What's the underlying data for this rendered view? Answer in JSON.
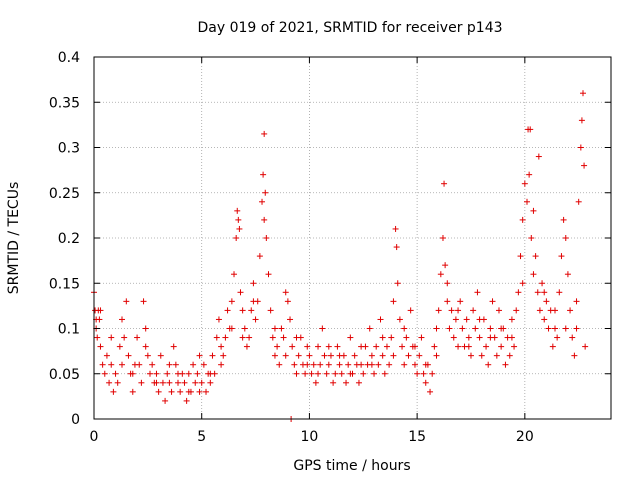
{
  "chart_data": {
    "type": "scatter",
    "title": "Day 019 of 2021, SRMTID for receiver p143",
    "xlabel": "GPS time / hours",
    "ylabel": "SRMTID / TECUs",
    "xlim": [
      0,
      24
    ],
    "ylim": [
      0,
      0.4
    ],
    "grid": true,
    "marker": "+",
    "color": "#e00000",
    "x_ticks": [
      0,
      5,
      10,
      15,
      20
    ],
    "x_tick_labels": [
      "0",
      "5",
      "10",
      "15",
      "20"
    ],
    "y_ticks": [
      0,
      0.05,
      0.1,
      0.15,
      0.2,
      0.25,
      0.3,
      0.35,
      0.4
    ],
    "y_tick_labels": [
      "0",
      "0.05",
      "0.1",
      "0.15",
      "0.2",
      "0.25",
      "0.3",
      "0.35",
      "0.4"
    ],
    "series": [
      {
        "name": "SRMTID",
        "points": [
          [
            0.0,
            0.14
          ],
          [
            0.05,
            0.12
          ],
          [
            0.1,
            0.1
          ],
          [
            0.15,
            0.09
          ],
          [
            0.2,
            0.12
          ],
          [
            0.25,
            0.11
          ],
          [
            0.3,
            0.08
          ],
          [
            0.4,
            0.06
          ],
          [
            0.5,
            0.05
          ],
          [
            0.6,
            0.07
          ],
          [
            0.7,
            0.04
          ],
          [
            0.8,
            0.06
          ],
          [
            0.9,
            0.03
          ],
          [
            1.0,
            0.05
          ],
          [
            1.1,
            0.04
          ],
          [
            1.2,
            0.08
          ],
          [
            1.3,
            0.11
          ],
          [
            1.4,
            0.09
          ],
          [
            1.5,
            0.13
          ],
          [
            1.6,
            0.07
          ],
          [
            1.7,
            0.05
          ],
          [
            1.8,
            0.03
          ],
          [
            1.9,
            0.06
          ],
          [
            2.0,
            0.09
          ],
          [
            2.1,
            0.06
          ],
          [
            2.2,
            0.04
          ],
          [
            2.3,
            0.13
          ],
          [
            2.4,
            0.1
          ],
          [
            2.5,
            0.07
          ],
          [
            2.6,
            0.05
          ],
          [
            2.7,
            0.06
          ],
          [
            2.8,
            0.04
          ],
          [
            2.9,
            0.05
          ],
          [
            3.0,
            0.03
          ],
          [
            3.1,
            0.07
          ],
          [
            3.2,
            0.04
          ],
          [
            3.3,
            0.02
          ],
          [
            3.4,
            0.05
          ],
          [
            3.5,
            0.04
          ],
          [
            3.6,
            0.03
          ],
          [
            3.7,
            0.08
          ],
          [
            3.8,
            0.06
          ],
          [
            3.9,
            0.04
          ],
          [
            4.0,
            0.03
          ],
          [
            4.1,
            0.05
          ],
          [
            4.2,
            0.04
          ],
          [
            4.3,
            0.02
          ],
          [
            4.4,
            0.05
          ],
          [
            4.5,
            0.03
          ],
          [
            4.6,
            0.06
          ],
          [
            4.7,
            0.04
          ],
          [
            4.8,
            0.05
          ],
          [
            4.9,
            0.03
          ],
          [
            5.0,
            0.04
          ],
          [
            5.1,
            0.06
          ],
          [
            5.2,
            0.03
          ],
          [
            5.3,
            0.05
          ],
          [
            5.4,
            0.04
          ],
          [
            5.5,
            0.07
          ],
          [
            5.6,
            0.05
          ],
          [
            5.7,
            0.09
          ],
          [
            5.8,
            0.11
          ],
          [
            5.9,
            0.06
          ],
          [
            6.0,
            0.07
          ],
          [
            6.1,
            0.09
          ],
          [
            6.2,
            0.12
          ],
          [
            6.3,
            0.1
          ],
          [
            6.4,
            0.13
          ],
          [
            6.5,
            0.16
          ],
          [
            6.6,
            0.2
          ],
          [
            6.65,
            0.23
          ],
          [
            6.7,
            0.22
          ],
          [
            6.8,
            0.14
          ],
          [
            6.9,
            0.12
          ],
          [
            7.0,
            0.1
          ],
          [
            7.1,
            0.08
          ],
          [
            7.2,
            0.09
          ],
          [
            7.3,
            0.12
          ],
          [
            7.4,
            0.15
          ],
          [
            7.5,
            0.11
          ],
          [
            7.6,
            0.13
          ],
          [
            7.7,
            0.18
          ],
          [
            7.8,
            0.24
          ],
          [
            7.85,
            0.27
          ],
          [
            7.9,
            0.315
          ],
          [
            7.95,
            0.25
          ],
          [
            8.0,
            0.2
          ],
          [
            8.1,
            0.16
          ],
          [
            8.2,
            0.12
          ],
          [
            8.3,
            0.09
          ],
          [
            8.4,
            0.07
          ],
          [
            8.5,
            0.08
          ],
          [
            8.6,
            0.06
          ],
          [
            8.7,
            0.1
          ],
          [
            8.8,
            0.09
          ],
          [
            8.9,
            0.14
          ],
          [
            9.0,
            0.13
          ],
          [
            9.1,
            0.11
          ],
          [
            9.2,
            0.08
          ],
          [
            9.3,
            0.06
          ],
          [
            9.4,
            0.05
          ],
          [
            9.5,
            0.07
          ],
          [
            9.6,
            0.09
          ],
          [
            9.7,
            0.06
          ],
          [
            9.8,
            0.05
          ],
          [
            9.9,
            0.08
          ],
          [
            10.0,
            0.07
          ],
          [
            10.1,
            0.05
          ],
          [
            10.2,
            0.06
          ],
          [
            10.3,
            0.04
          ],
          [
            10.4,
            0.08
          ],
          [
            10.5,
            0.06
          ],
          [
            10.6,
            0.1
          ],
          [
            10.7,
            0.07
          ],
          [
            10.8,
            0.05
          ],
          [
            10.9,
            0.06
          ],
          [
            11.0,
            0.07
          ],
          [
            11.1,
            0.04
          ],
          [
            11.2,
            0.05
          ],
          [
            11.3,
            0.08
          ],
          [
            11.4,
            0.06
          ],
          [
            11.5,
            0.05
          ],
          [
            11.6,
            0.07
          ],
          [
            11.7,
            0.04
          ],
          [
            11.8,
            0.06
          ],
          [
            11.9,
            0.09
          ],
          [
            12.0,
            0.05
          ],
          [
            12.1,
            0.07
          ],
          [
            12.2,
            0.06
          ],
          [
            12.3,
            0.04
          ],
          [
            12.4,
            0.06
          ],
          [
            12.5,
            0.05
          ],
          [
            12.6,
            0.08
          ],
          [
            12.7,
            0.06
          ],
          [
            12.8,
            0.1
          ],
          [
            12.9,
            0.07
          ],
          [
            13.0,
            0.05
          ],
          [
            13.1,
            0.08
          ],
          [
            13.2,
            0.06
          ],
          [
            13.3,
            0.11
          ],
          [
            13.4,
            0.07
          ],
          [
            13.5,
            0.05
          ],
          [
            13.6,
            0.08
          ],
          [
            13.7,
            0.06
          ],
          [
            13.8,
            0.09
          ],
          [
            13.9,
            0.13
          ],
          [
            14.0,
            0.21
          ],
          [
            14.05,
            0.19
          ],
          [
            14.1,
            0.15
          ],
          [
            14.2,
            0.11
          ],
          [
            14.3,
            0.08
          ],
          [
            14.4,
            0.06
          ],
          [
            14.5,
            0.09
          ],
          [
            14.6,
            0.07
          ],
          [
            14.7,
            0.12
          ],
          [
            14.8,
            0.08
          ],
          [
            14.9,
            0.06
          ],
          [
            15.0,
            0.05
          ],
          [
            15.1,
            0.07
          ],
          [
            15.2,
            0.09
          ],
          [
            15.3,
            0.05
          ],
          [
            15.4,
            0.04
          ],
          [
            15.5,
            0.06
          ],
          [
            15.6,
            0.03
          ],
          [
            15.7,
            0.05
          ],
          [
            15.8,
            0.08
          ],
          [
            15.9,
            0.1
          ],
          [
            16.0,
            0.12
          ],
          [
            16.1,
            0.16
          ],
          [
            16.2,
            0.2
          ],
          [
            16.25,
            0.26
          ],
          [
            16.3,
            0.17
          ],
          [
            16.4,
            0.13
          ],
          [
            16.5,
            0.1
          ],
          [
            16.6,
            0.12
          ],
          [
            16.7,
            0.09
          ],
          [
            16.8,
            0.11
          ],
          [
            16.9,
            0.08
          ],
          [
            17.0,
            0.13
          ],
          [
            17.1,
            0.1
          ],
          [
            17.2,
            0.08
          ],
          [
            17.3,
            0.11
          ],
          [
            17.4,
            0.09
          ],
          [
            17.5,
            0.07
          ],
          [
            17.6,
            0.12
          ],
          [
            17.7,
            0.1
          ],
          [
            17.8,
            0.14
          ],
          [
            17.9,
            0.09
          ],
          [
            18.0,
            0.07
          ],
          [
            18.1,
            0.11
          ],
          [
            18.2,
            0.08
          ],
          [
            18.3,
            0.06
          ],
          [
            18.4,
            0.1
          ],
          [
            18.5,
            0.13
          ],
          [
            18.6,
            0.09
          ],
          [
            18.7,
            0.07
          ],
          [
            18.8,
            0.12
          ],
          [
            18.9,
            0.08
          ],
          [
            19.0,
            0.1
          ],
          [
            19.1,
            0.06
          ],
          [
            19.2,
            0.09
          ],
          [
            19.3,
            0.07
          ],
          [
            19.4,
            0.11
          ],
          [
            19.5,
            0.08
          ],
          [
            19.6,
            0.12
          ],
          [
            19.7,
            0.14
          ],
          [
            19.8,
            0.18
          ],
          [
            19.9,
            0.22
          ],
          [
            20.0,
            0.26
          ],
          [
            20.1,
            0.24
          ],
          [
            20.15,
            0.32
          ],
          [
            20.2,
            0.27
          ],
          [
            20.3,
            0.2
          ],
          [
            20.4,
            0.23
          ],
          [
            20.5,
            0.18
          ],
          [
            20.6,
            0.14
          ],
          [
            20.65,
            0.29
          ],
          [
            20.7,
            0.12
          ],
          [
            20.8,
            0.15
          ],
          [
            20.9,
            0.11
          ],
          [
            21.0,
            0.13
          ],
          [
            21.1,
            0.1
          ],
          [
            21.2,
            0.12
          ],
          [
            21.3,
            0.08
          ],
          [
            21.4,
            0.1
          ],
          [
            21.5,
            0.09
          ],
          [
            21.6,
            0.14
          ],
          [
            21.7,
            0.18
          ],
          [
            21.8,
            0.22
          ],
          [
            21.9,
            0.2
          ],
          [
            22.0,
            0.16
          ],
          [
            22.1,
            0.12
          ],
          [
            22.2,
            0.09
          ],
          [
            22.3,
            0.07
          ],
          [
            22.4,
            0.1
          ],
          [
            22.5,
            0.24
          ],
          [
            22.6,
            0.3
          ],
          [
            22.65,
            0.33
          ],
          [
            22.7,
            0.36
          ],
          [
            22.75,
            0.28
          ],
          [
            0.3,
            0.12
          ],
          [
            0.8,
            0.09
          ],
          [
            1.3,
            0.06
          ],
          [
            1.8,
            0.05
          ],
          [
            2.4,
            0.08
          ],
          [
            2.9,
            0.04
          ],
          [
            3.5,
            0.06
          ],
          [
            3.9,
            0.05
          ],
          [
            4.4,
            0.03
          ],
          [
            4.9,
            0.07
          ],
          [
            5.4,
            0.05
          ],
          [
            5.9,
            0.08
          ],
          [
            6.4,
            0.1
          ],
          [
            6.9,
            0.09
          ],
          [
            7.4,
            0.13
          ],
          [
            7.9,
            0.22
          ],
          [
            8.4,
            0.1
          ],
          [
            8.9,
            0.07
          ],
          [
            9.4,
            0.09
          ],
          [
            9.9,
            0.06
          ],
          [
            10.4,
            0.05
          ],
          [
            10.9,
            0.08
          ],
          [
            11.4,
            0.07
          ],
          [
            11.9,
            0.05
          ],
          [
            12.4,
            0.08
          ],
          [
            12.9,
            0.06
          ],
          [
            13.4,
            0.09
          ],
          [
            13.9,
            0.07
          ],
          [
            14.4,
            0.1
          ],
          [
            14.9,
            0.08
          ],
          [
            15.4,
            0.06
          ],
          [
            15.9,
            0.07
          ],
          [
            16.4,
            0.15
          ],
          [
            16.9,
            0.12
          ],
          [
            17.4,
            0.08
          ],
          [
            17.9,
            0.11
          ],
          [
            18.4,
            0.09
          ],
          [
            18.9,
            0.1
          ],
          [
            19.4,
            0.09
          ],
          [
            19.9,
            0.15
          ],
          [
            20.4,
            0.16
          ],
          [
            20.9,
            0.14
          ],
          [
            21.4,
            0.12
          ],
          [
            21.9,
            0.1
          ],
          [
            22.4,
            0.13
          ],
          [
            22.8,
            0.08
          ],
          [
            9.15,
            0.0
          ],
          [
            0.1,
            0.11
          ],
          [
            6.75,
            0.21
          ],
          [
            20.25,
            0.32
          ]
        ]
      }
    ]
  }
}
